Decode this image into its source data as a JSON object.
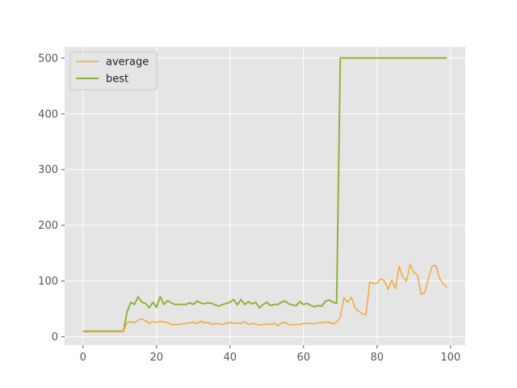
{
  "chart_data": {
    "type": "line",
    "title": "",
    "xlabel": "",
    "ylabel": "",
    "xlim": [
      -5,
      104
    ],
    "ylim": [
      -15,
      520
    ],
    "xticks": [
      0,
      20,
      40,
      60,
      80,
      100
    ],
    "yticks": [
      0,
      100,
      200,
      300,
      400,
      500
    ],
    "grid": true,
    "legend_placement": "top-left",
    "colors": {
      "background": "#E5E5E5",
      "grid": "#FFFFFF",
      "average": "#F0A93C",
      "best": "#8EB33C"
    },
    "series": [
      {
        "name": "average",
        "x": [
          0,
          1,
          2,
          3,
          4,
          5,
          6,
          7,
          8,
          9,
          10,
          11,
          12,
          13,
          14,
          15,
          16,
          17,
          18,
          19,
          20,
          21,
          22,
          23,
          24,
          25,
          26,
          27,
          28,
          29,
          30,
          31,
          32,
          33,
          34,
          35,
          36,
          37,
          38,
          39,
          40,
          41,
          42,
          43,
          44,
          45,
          46,
          47,
          48,
          49,
          50,
          51,
          52,
          53,
          54,
          55,
          56,
          57,
          58,
          59,
          60,
          61,
          62,
          63,
          64,
          65,
          66,
          67,
          68,
          69,
          70,
          71,
          72,
          73,
          74,
          75,
          76,
          77,
          78,
          79,
          80,
          81,
          82,
          83,
          84,
          85,
          86,
          87,
          88,
          89,
          90,
          91,
          92,
          93,
          94,
          95,
          96,
          97,
          98,
          99
        ],
        "values": [
          9,
          9,
          9,
          9,
          9,
          9,
          9,
          9,
          9,
          9,
          9,
          10,
          26,
          27,
          25,
          30,
          32,
          29,
          24,
          27,
          26,
          28,
          26,
          26,
          22,
          22,
          22,
          23,
          24,
          25,
          26,
          24,
          28,
          25,
          26,
          22,
          24,
          23,
          22,
          24,
          26,
          24,
          25,
          24,
          27,
          22,
          24,
          23,
          21,
          22,
          23,
          22,
          24,
          20,
          25,
          26,
          21,
          22,
          22,
          22,
          24,
          24,
          24,
          23,
          25,
          25,
          26,
          26,
          23,
          26,
          35,
          70,
          62,
          71,
          52,
          46,
          41,
          40,
          98,
          96,
          96,
          104,
          100,
          85,
          102,
          86,
          126,
          107,
          100,
          130,
          116,
          110,
          76,
          80,
          105,
          127,
          128,
          105,
          95,
          89
        ]
      },
      {
        "name": "best",
        "x": [
          0,
          1,
          2,
          3,
          4,
          5,
          6,
          7,
          8,
          9,
          10,
          11,
          12,
          13,
          14,
          15,
          16,
          17,
          18,
          19,
          20,
          21,
          22,
          23,
          24,
          25,
          26,
          27,
          28,
          29,
          30,
          31,
          32,
          33,
          34,
          35,
          36,
          37,
          38,
          39,
          40,
          41,
          42,
          43,
          44,
          45,
          46,
          47,
          48,
          49,
          50,
          51,
          52,
          53,
          54,
          55,
          56,
          57,
          58,
          59,
          60,
          61,
          62,
          63,
          64,
          65,
          66,
          67,
          68,
          69,
          70,
          71,
          72,
          73,
          74,
          75,
          76,
          77,
          78,
          79,
          80,
          81,
          82,
          83,
          84,
          85,
          86,
          87,
          88,
          89,
          90,
          91,
          92,
          93,
          94,
          95,
          96,
          97,
          98,
          99
        ],
        "values": [
          10,
          10,
          10,
          10,
          10,
          10,
          10,
          10,
          10,
          10,
          10,
          10,
          45,
          62,
          58,
          72,
          62,
          60,
          52,
          62,
          53,
          72,
          58,
          65,
          61,
          58,
          58,
          58,
          58,
          61,
          58,
          64,
          61,
          59,
          61,
          60,
          57,
          55,
          58,
          60,
          62,
          67,
          57,
          67,
          58,
          63,
          59,
          62,
          52,
          58,
          62,
          56,
          58,
          58,
          62,
          64,
          59,
          57,
          56,
          63,
          58,
          60,
          56,
          54,
          56,
          55,
          64,
          66,
          62,
          60,
          500,
          500,
          500,
          500,
          500,
          500,
          500,
          500,
          500,
          500,
          500,
          500,
          500,
          500,
          500,
          500,
          500,
          500,
          500,
          500,
          500,
          500,
          500,
          500,
          500,
          500,
          500,
          500,
          500,
          500
        ]
      }
    ]
  }
}
